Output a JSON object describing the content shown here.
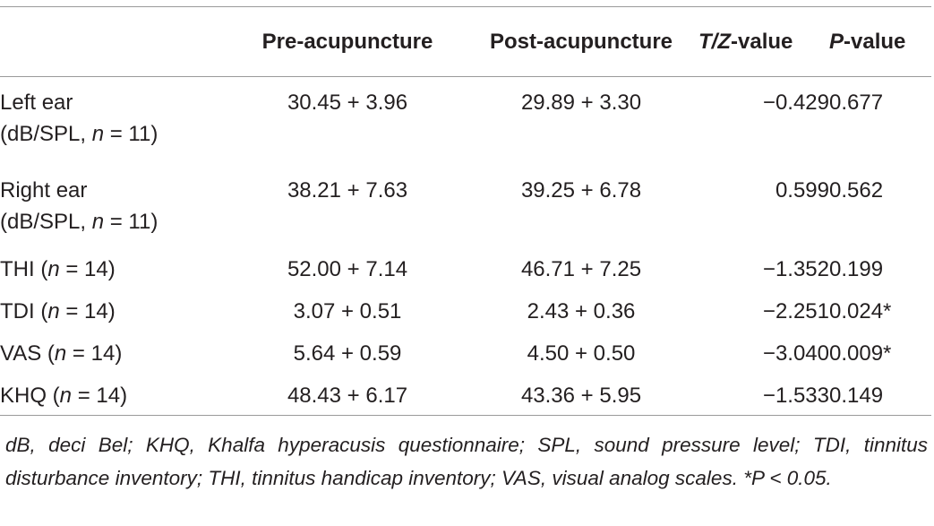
{
  "table": {
    "headers": {
      "label": "",
      "pre": "Pre-acupuncture",
      "post": "Post-acupuncture",
      "tz_italic": "T/Z",
      "tz_rest": "-value",
      "p_italic": "P",
      "p_rest": "-value"
    },
    "rows": [
      {
        "label_line1": "Left ear",
        "label_line2_a": "(dB/SPL, ",
        "label_line2_n": "n",
        "label_line2_b": " = 11)",
        "pre": "30.45 + 3.96",
        "post": "29.89 + 3.30",
        "tz": "−0.429",
        "p": "0.677"
      },
      {
        "label_line1": "Right ear",
        "label_line2_a": "(dB/SPL, ",
        "label_line2_n": "n",
        "label_line2_b": " = 11)",
        "pre": "38.21 + 7.63",
        "post": "39.25 + 6.78",
        "tz": "0.599",
        "p": "0.562"
      },
      {
        "label_a": "THI (",
        "label_n": "n",
        "label_b": " = 14)",
        "pre": "52.00 + 7.14",
        "post": "46.71 + 7.25",
        "tz": "−1.352",
        "p": "0.199"
      },
      {
        "label_a": "TDI (",
        "label_n": "n",
        "label_b": " = 14)",
        "pre": "3.07 + 0.51",
        "post": "2.43 + 0.36",
        "tz": "−2.251",
        "p": "0.024*"
      },
      {
        "label_a": "VAS (",
        "label_n": "n",
        "label_b": " = 14)",
        "pre": "5.64 + 0.59",
        "post": "4.50 + 0.50",
        "tz": "−3.040",
        "p": "0.009*"
      },
      {
        "label_a": "KHQ (",
        "label_n": "n",
        "label_b": " = 14)",
        "pre": "48.43 + 6.17",
        "post": "43.36 + 5.95",
        "tz": "−1.533",
        "p": "0.149"
      }
    ]
  },
  "footnote": "dB, deci Bel; KHQ, Khalfa hyperacusis questionnaire; SPL, sound pressure level; TDI, tinnitus disturbance inventory; THI, tinnitus handicap inventory; VAS, visual analog scales. *P < 0.05."
}
